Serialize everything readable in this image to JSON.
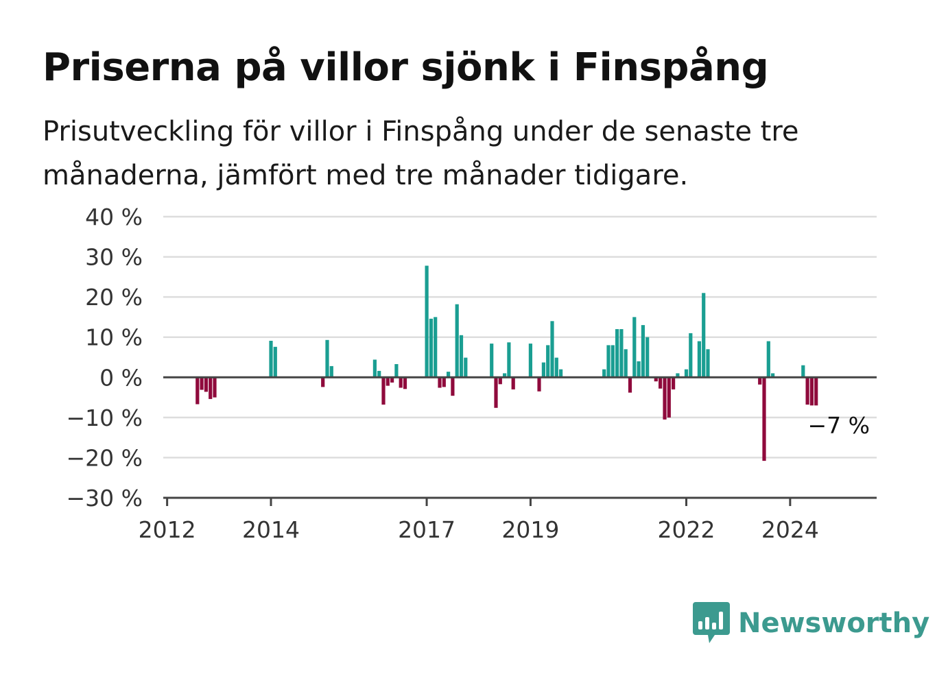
{
  "title": "Priserna på villor sjönk i Finspång",
  "subtitle": "Prisutveckling för villor i Finspång under de senaste tre månaderna, jämfört med tre månader tidigare.",
  "brand": {
    "name": "Newsworthy",
    "color": "#3c9a8f",
    "icon": "bar-chart-speech-bubble-icon"
  },
  "colors": {
    "positive": "#1a9e92",
    "negative": "#8f0a3c",
    "grid": "#dddddd",
    "axis": "#444444"
  },
  "chart_data": {
    "type": "bar",
    "ylim": [
      -30,
      40
    ],
    "yticks": [
      40,
      30,
      20,
      10,
      0,
      -10,
      -20,
      -30
    ],
    "ytick_labels": [
      "40 %",
      "30 %",
      "20 %",
      "10 %",
      "0 %",
      "−10 %",
      "−20 %",
      "−30 %"
    ],
    "xlim": [
      "2012-01",
      "2025-09"
    ],
    "xticks": [
      "2012-01",
      "2014-01",
      "2017-01",
      "2019-01",
      "2022-01",
      "2024-01"
    ],
    "xtick_labels": [
      "2012",
      "2014",
      "2017",
      "2019",
      "2022",
      "2024"
    ],
    "grid": true,
    "annotation": {
      "label": "−7 %",
      "x": "2025-02"
    },
    "x": [
      "2012-08",
      "2012-09",
      "2012-10",
      "2012-11",
      "2012-12",
      "2014-01",
      "2014-02",
      "2015-01",
      "2015-02",
      "2015-03",
      "2016-01",
      "2016-02",
      "2016-03",
      "2016-04",
      "2016-05",
      "2016-06",
      "2016-07",
      "2016-08",
      "2017-01",
      "2017-02",
      "2017-03",
      "2017-04",
      "2017-05",
      "2017-06",
      "2017-07",
      "2017-08",
      "2017-09",
      "2017-10",
      "2018-04",
      "2018-05",
      "2018-06",
      "2018-07",
      "2018-08",
      "2018-09",
      "2019-01",
      "2019-03",
      "2019-04",
      "2019-05",
      "2019-06",
      "2019-07",
      "2019-08",
      "2020-06",
      "2020-07",
      "2020-08",
      "2020-09",
      "2020-10",
      "2020-11",
      "2020-12",
      "2021-01",
      "2021-02",
      "2021-03",
      "2021-04",
      "2021-06",
      "2021-07",
      "2021-08",
      "2021-09",
      "2021-10",
      "2021-11",
      "2022-01",
      "2022-02",
      "2022-04",
      "2022-05",
      "2022-06",
      "2023-06",
      "2023-07",
      "2023-08",
      "2023-09",
      "2024-04",
      "2024-05",
      "2024-06",
      "2024-07"
    ],
    "values": [
      -6.7,
      -3.1,
      -3.6,
      -5.4,
      -5.0,
      9.1,
      7.6,
      -2.4,
      9.3,
      2.8,
      4.4,
      1.6,
      -6.8,
      -2.1,
      -1.3,
      3.3,
      -2.6,
      -2.9,
      27.8,
      14.6,
      15.0,
      -2.6,
      -2.4,
      1.4,
      -4.6,
      18.2,
      10.5,
      4.9,
      8.4,
      -7.6,
      -1.7,
      1.0,
      8.7,
      -3.0,
      8.4,
      -3.5,
      3.7,
      8.0,
      14.0,
      4.9,
      2.0,
      2.0,
      8.0,
      8.0,
      12.0,
      12.0,
      7.0,
      -3.8,
      15.0,
      4.0,
      13.0,
      10.0,
      -1.0,
      -2.8,
      -10.5,
      -10.0,
      -3.0,
      1.0,
      2.0,
      11.0,
      9.0,
      21.0,
      7.0,
      -1.8,
      -20.8,
      9.0,
      1.0,
      3.0,
      -6.8,
      -7.0,
      -7.0
    ]
  }
}
